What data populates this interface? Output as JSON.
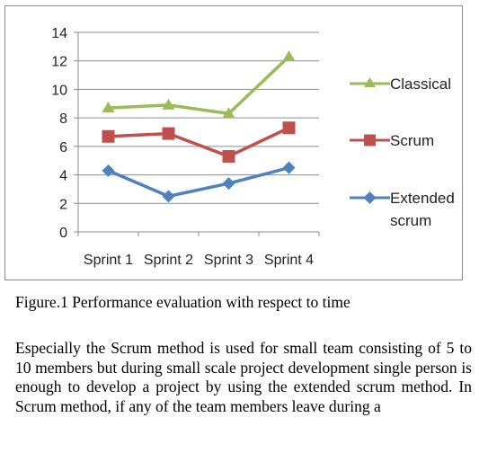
{
  "chart_data": {
    "type": "line",
    "categories": [
      "Sprint 1",
      "Sprint 2",
      "Sprint 3",
      "Sprint 4"
    ],
    "series": [
      {
        "name": "Classical",
        "values": [
          8.7,
          8.9,
          8.3,
          12.3
        ],
        "color": "#9bbb59",
        "marker": "triangle"
      },
      {
        "name": "Scrum",
        "values": [
          6.7,
          6.9,
          5.3,
          7.3
        ],
        "color": "#c0504d",
        "marker": "square"
      },
      {
        "name": "Extended scrum",
        "values": [
          4.3,
          2.5,
          3.4,
          4.5
        ],
        "color": "#4f81bd",
        "marker": "diamond"
      }
    ],
    "yticks": [
      "0",
      "2",
      "4",
      "6",
      "8",
      "10",
      "12",
      "14"
    ],
    "ylim": [
      0,
      14
    ],
    "grid": true,
    "legend_position": "right"
  },
  "legend": {
    "classical": "Classical",
    "scrum": "Scrum",
    "extended_line1": "Extended",
    "extended_line2": "scrum"
  },
  "caption": "Figure.1 Performance evaluation with respect to time",
  "body_text": "Especially the Scrum method is used for small team consisting of 5 to 10 members but during small scale project development single person is enough to develop a project by using the extended scrum method. In Scrum method, if any of the team members leave during a"
}
